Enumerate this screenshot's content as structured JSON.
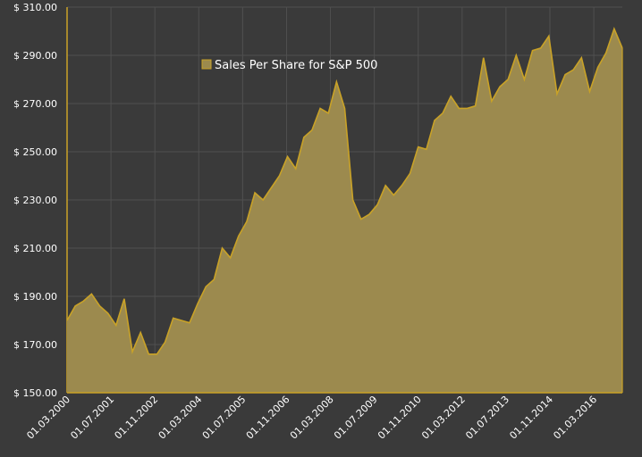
{
  "chart_data": {
    "type": "area",
    "title": "",
    "xlabel": "",
    "ylabel": "",
    "legend": {
      "label": "Sales Per Share for S&P 500",
      "placement": "top-left"
    },
    "ylim": [
      150,
      310
    ],
    "yticks": [
      150,
      170,
      190,
      210,
      230,
      250,
      270,
      290,
      310
    ],
    "ytick_format": "$ {v}.00",
    "xtick_labels": [
      "01.03.2000",
      "01.07.2001",
      "01.11.2002",
      "01.03.2004",
      "01.07.2005",
      "01.11.2006",
      "01.03.2008",
      "01.07.2009",
      "01.11.2010",
      "01.03.2012",
      "01.07.2013",
      "01.11.2014",
      "01.03.2016"
    ],
    "grid": true,
    "colors": {
      "fill": "#9c8a4e",
      "line": "#c9a227",
      "grid": "#505050",
      "axis": "#c9a227",
      "text": "#ffffff",
      "background": "#3a3a3a"
    },
    "x": [
      "2000-03",
      "2000-06",
      "2000-09",
      "2000-12",
      "2001-03",
      "2001-06",
      "2001-09",
      "2001-12",
      "2002-03",
      "2002-06",
      "2002-09",
      "2002-12",
      "2003-03",
      "2003-06",
      "2003-09",
      "2003-12",
      "2004-03",
      "2004-06",
      "2004-09",
      "2004-12",
      "2005-03",
      "2005-06",
      "2005-09",
      "2005-12",
      "2006-03",
      "2006-06",
      "2006-09",
      "2006-12",
      "2007-03",
      "2007-06",
      "2007-09",
      "2007-12",
      "2008-03",
      "2008-06",
      "2008-09",
      "2008-12",
      "2009-03",
      "2009-06",
      "2009-09",
      "2009-12",
      "2010-03",
      "2010-06",
      "2010-09",
      "2010-12",
      "2011-03",
      "2011-06",
      "2011-09",
      "2011-12",
      "2012-03",
      "2012-06",
      "2012-09",
      "2012-12",
      "2013-03",
      "2013-06",
      "2013-09",
      "2013-12",
      "2014-03",
      "2014-06",
      "2014-09",
      "2014-12",
      "2015-03",
      "2015-06",
      "2015-09",
      "2015-12",
      "2016-03",
      "2016-06",
      "2016-09",
      "2016-12",
      "2017-03"
    ],
    "series": [
      {
        "name": "Sales Per Share for S&P 500",
        "values": [
          180,
          186,
          188,
          191,
          186,
          183,
          178,
          189,
          167,
          175,
          166,
          166,
          171,
          181,
          180,
          179,
          187,
          194,
          197,
          210,
          206,
          215,
          221,
          233,
          230,
          235,
          240,
          248,
          243,
          256,
          259,
          268,
          266,
          279,
          268,
          230,
          222,
          224,
          228,
          236,
          232,
          236,
          241,
          252,
          251,
          263,
          266,
          273,
          268,
          268,
          269,
          289,
          271,
          277,
          280,
          290,
          280,
          292,
          293,
          298,
          274,
          282,
          284,
          289,
          275,
          285,
          291,
          301,
          293
        ]
      }
    ]
  }
}
